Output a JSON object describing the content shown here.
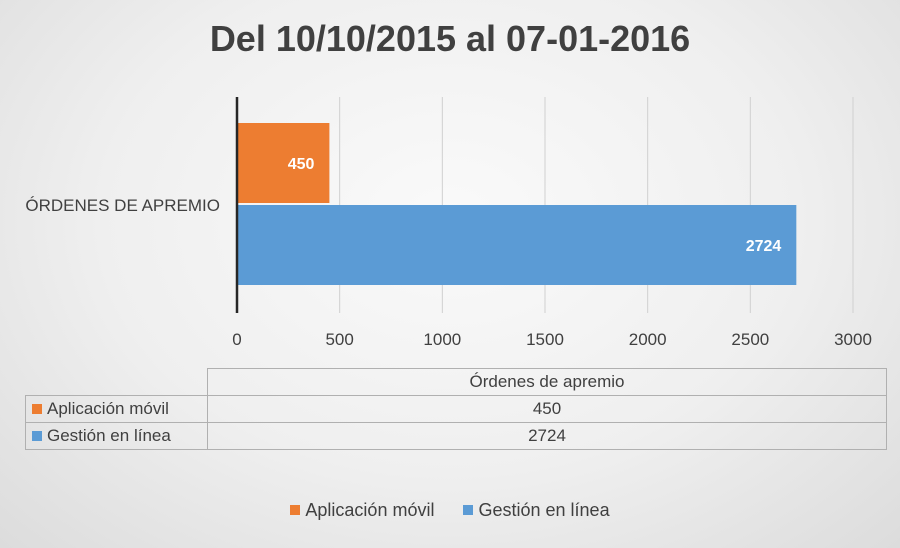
{
  "chart_data": {
    "type": "bar",
    "orientation": "horizontal",
    "title": "Del 10/10/2015 al 07-01-2016",
    "categories": [
      "ÓRDENES DE APREMIO"
    ],
    "series": [
      {
        "name": "Aplicación móvil",
        "values": [
          450
        ],
        "color": "#ED7D31"
      },
      {
        "name": "Gestión en línea",
        "values": [
          2724
        ],
        "color": "#5B9BD5"
      }
    ],
    "xlim": [
      0,
      3000
    ],
    "x_ticks": [
      0,
      500,
      1000,
      1500,
      2000,
      2500,
      3000
    ],
    "grid": true,
    "data_table": {
      "column_header": "Órdenes de apremio",
      "rows": [
        {
          "name": "Aplicación móvil",
          "value": "450"
        },
        {
          "name": "Gestión en línea",
          "value": "2724"
        }
      ]
    },
    "legend": {
      "position": "bottom",
      "items": [
        "Aplicación móvil",
        "Gestión en línea"
      ]
    }
  }
}
